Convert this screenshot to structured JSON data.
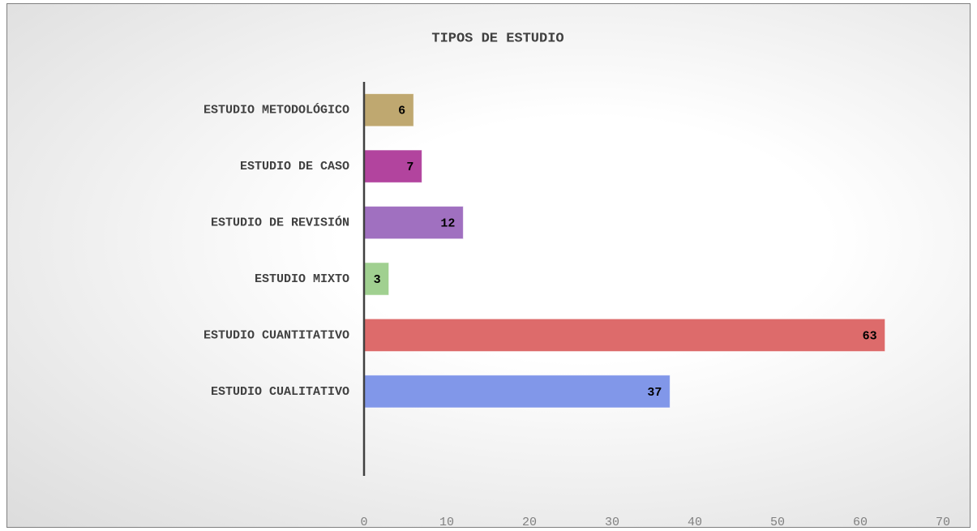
{
  "chart_data": {
    "type": "bar",
    "orientation": "horizontal",
    "title": "TIPOS DE ESTUDIO",
    "categories": [
      "ESTUDIO METODOLÓGICO",
      "ESTUDIO DE CASO",
      "ESTUDIO DE REVISIÓN",
      "ESTUDIO MIXTO",
      "ESTUDIO CUANTITATIVO",
      "ESTUDIO CUALITATIVO",
      null
    ],
    "values": [
      6,
      7,
      12,
      3,
      63,
      37,
      null
    ],
    "colors": [
      "#bfa870",
      "#b2449e",
      "#a070c0",
      "#a0d090",
      "#dd6b6b",
      "#8197e9",
      null
    ],
    "xlim": [
      0,
      70
    ],
    "xticks": [
      0,
      10,
      20,
      30,
      40,
      50,
      60,
      70
    ],
    "grid": false
  }
}
